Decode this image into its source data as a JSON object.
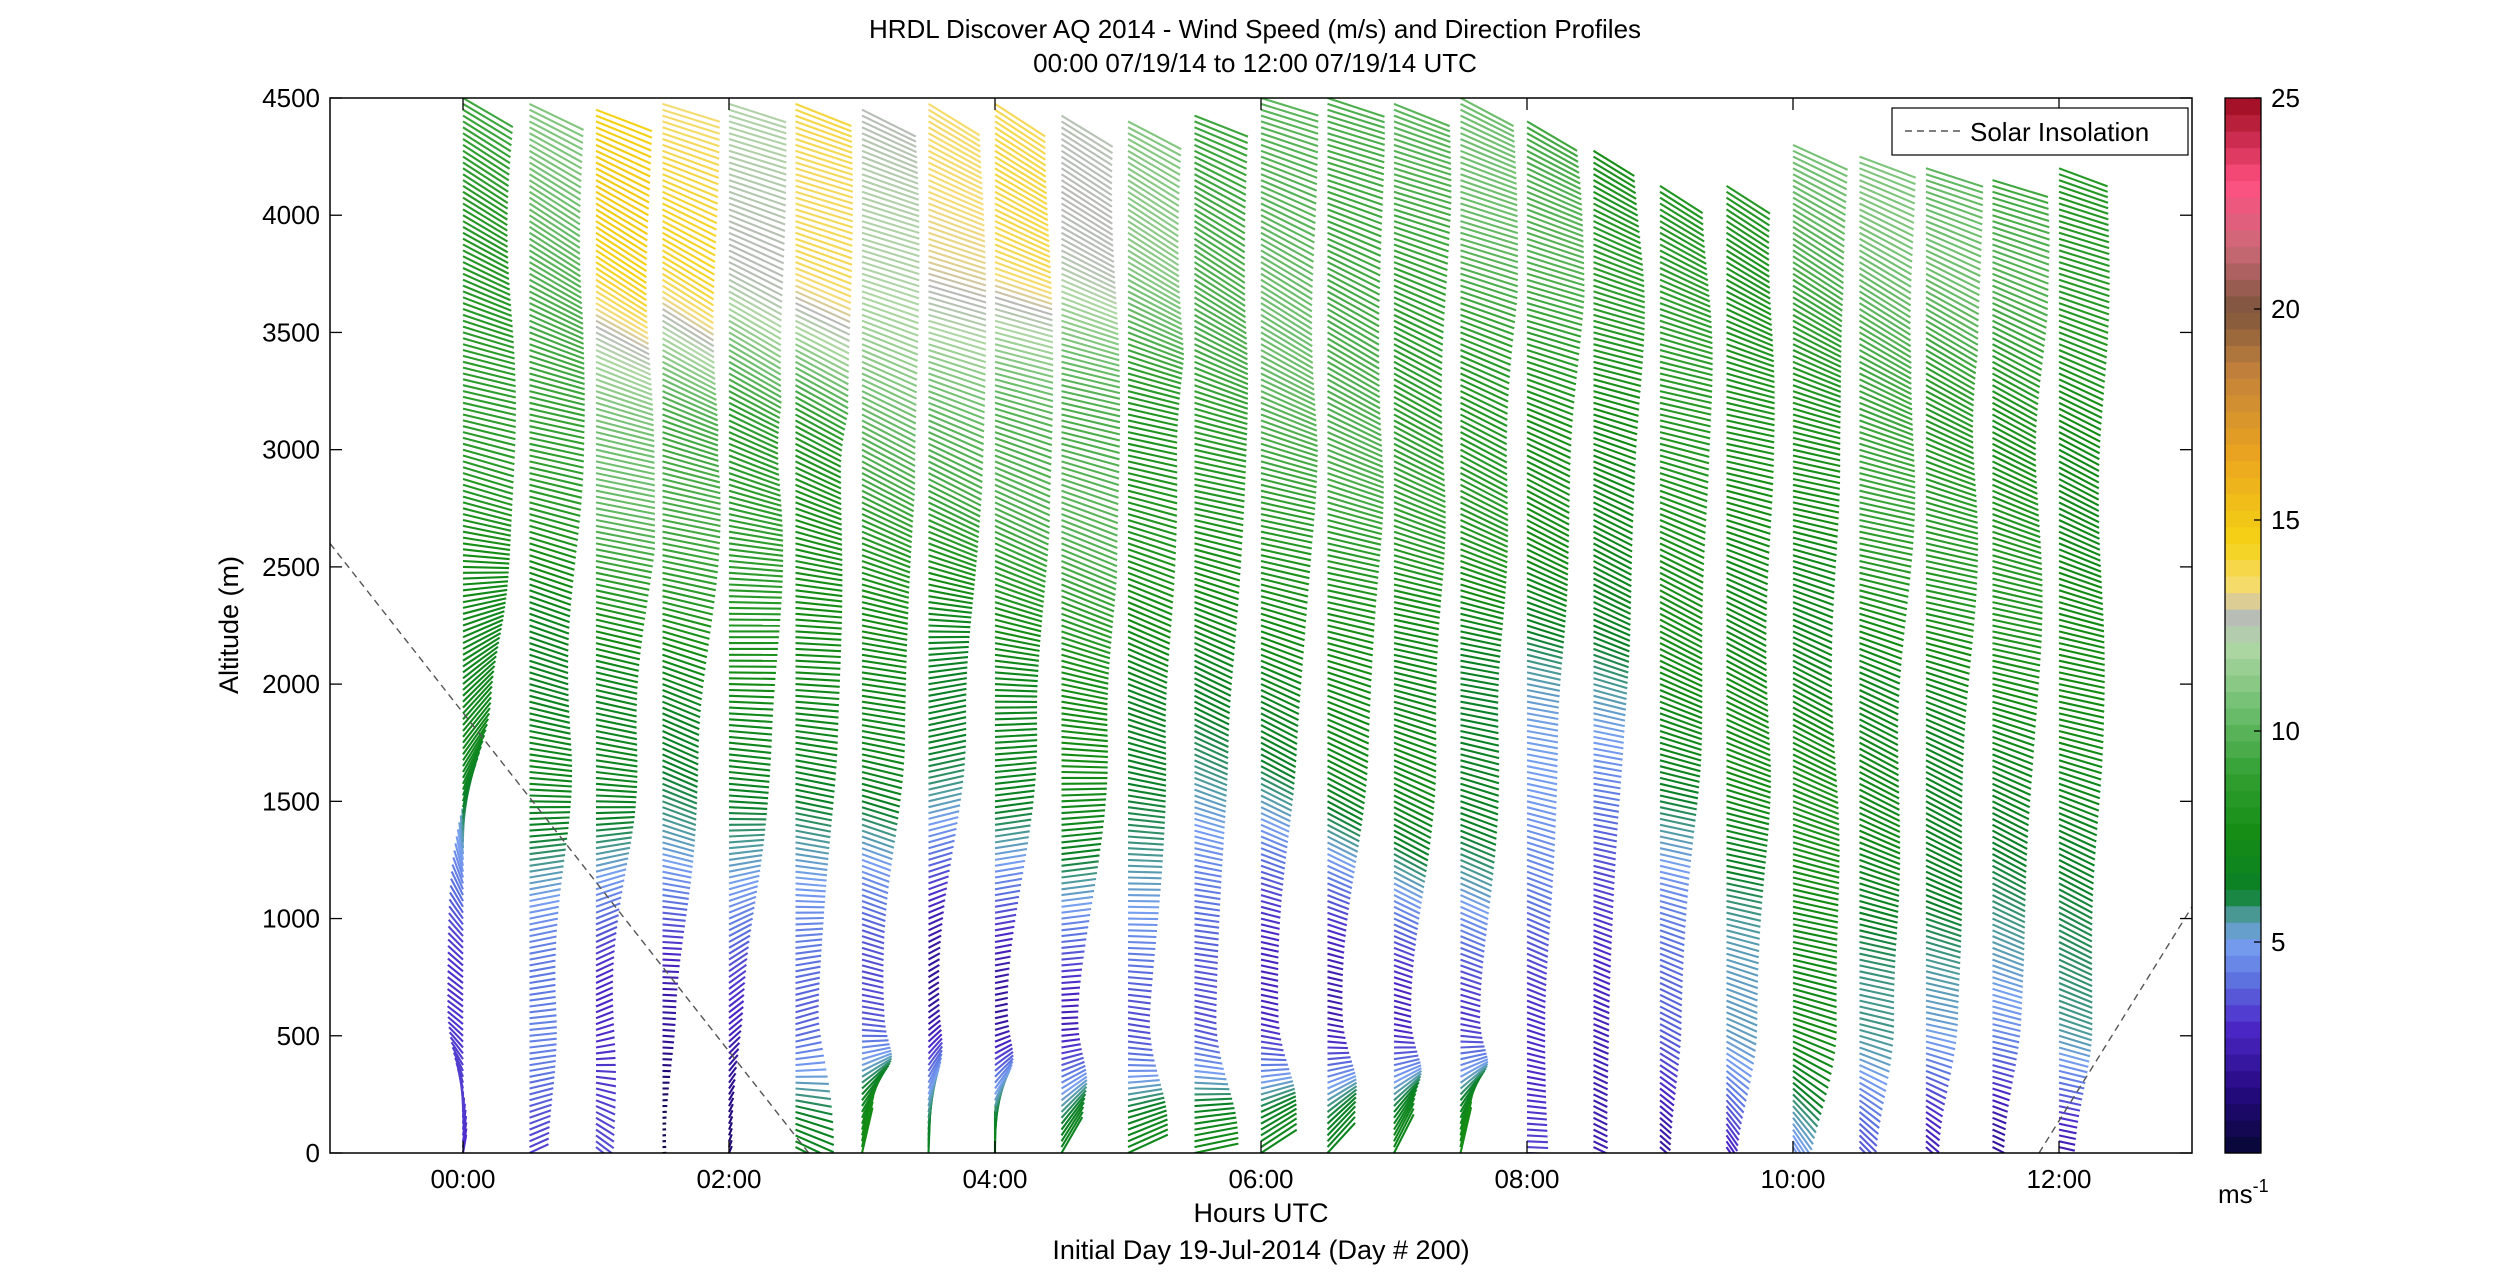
{
  "chart_data": {
    "type": "wind_barb_profile",
    "title_line1": "HRDL Discover AQ 2014 - Wind Speed (m/s) and Direction Profiles",
    "title_line2": "00:00 07/19/14 to 12:00 07/19/14  UTC",
    "xlabel": "Hours UTC",
    "xlabel2": "Initial Day 19-Jul-2014 (Day # 200)",
    "ylabel": "Altitude (m)",
    "xlim": [
      -1.0,
      13.0
    ],
    "ylim": [
      0,
      4500
    ],
    "xticks": [
      0,
      2,
      4,
      6,
      8,
      10,
      12
    ],
    "xtick_labels": [
      "00:00",
      "02:00",
      "04:00",
      "06:00",
      "08:00",
      "10:00",
      "12:00"
    ],
    "yticks": [
      0,
      500,
      1000,
      1500,
      2000,
      2500,
      3000,
      3500,
      4000,
      4500
    ],
    "ytick_labels": [
      "0",
      "500",
      "1000",
      "1500",
      "2000",
      "2500",
      "3000",
      "3500",
      "4000",
      "4500"
    ],
    "colorbar": {
      "range": [
        0,
        25
      ],
      "ticks": [
        5,
        10,
        15,
        20,
        25
      ],
      "tick_labels": [
        "5",
        "10",
        "15",
        "20",
        "25"
      ],
      "unit_label": "ms",
      "unit_exponent": "-1"
    },
    "legend": {
      "entries": [
        "Solar Insolation"
      ],
      "placement": "top-right",
      "line_style": "dashed"
    },
    "solar_insolation": {
      "segments": [
        {
          "x": [
            -1.0,
            2.6
          ],
          "y": [
            2600,
            0
          ]
        },
        {
          "x": [
            11.85,
            13.0
          ],
          "y": [
            0,
            1050
          ]
        }
      ]
    },
    "profiles": [
      {
        "time": 0.0,
        "top": 4500,
        "low": {
          "spd": 3,
          "dir": 190
        },
        "mid": {
          "spd": 2.5,
          "dir": 120
        },
        "up": {
          "spd": 9,
          "dir": 290
        },
        "jet": {
          "spd": 9,
          "dir": 295
        }
      },
      {
        "time": 0.5,
        "top": 4480,
        "low": {
          "spd": 2.5,
          "dir": 240
        },
        "mid": {
          "spd": 4,
          "dir": 260
        },
        "up": {
          "spd": 9,
          "dir": 290
        },
        "jet": {
          "spd": 10,
          "dir": 295
        }
      },
      {
        "time": 1.0,
        "top": 4460,
        "low": {
          "spd": 3,
          "dir": 300
        },
        "mid": {
          "spd": 3.5,
          "dir": 250
        },
        "up": {
          "spd": 10,
          "dir": 290
        },
        "jet": {
          "spd": 14,
          "dir": 295
        }
      },
      {
        "time": 1.5,
        "top": 4490,
        "low": {
          "spd": 1,
          "dir": 260
        },
        "mid": {
          "spd": 3,
          "dir": 280
        },
        "up": {
          "spd": 9,
          "dir": 290
        },
        "jet": {
          "spd": 14,
          "dir": 295
        }
      },
      {
        "time": 2.0,
        "top": 4480,
        "low": {
          "spd": 2,
          "dir": 200
        },
        "mid": {
          "spd": 3,
          "dir": 240
        },
        "up": {
          "spd": 9,
          "dir": 290
        },
        "jet": {
          "spd": 13,
          "dir": 295
        }
      },
      {
        "time": 2.5,
        "top": 4490,
        "low": {
          "spd": 7,
          "dir": 300
        },
        "mid": {
          "spd": 3,
          "dir": 260
        },
        "up": {
          "spd": 9,
          "dir": 290
        },
        "jet": {
          "spd": 14,
          "dir": 295
        }
      },
      {
        "time": 3.0,
        "top": 4460,
        "low": {
          "spd": 7,
          "dir": 200
        },
        "mid": {
          "spd": 3,
          "dir": 280
        },
        "up": {
          "spd": 10,
          "dir": 290
        },
        "jet": {
          "spd": 12,
          "dir": 295
        }
      },
      {
        "time": 3.5,
        "top": 4480,
        "low": {
          "spd": 6,
          "dir": 190
        },
        "mid": {
          "spd": 2.5,
          "dir": 230
        },
        "up": {
          "spd": 9,
          "dir": 290
        },
        "jet": {
          "spd": 13,
          "dir": 295
        }
      },
      {
        "time": 4.0,
        "top": 4480,
        "low": {
          "spd": 7,
          "dir": 185
        },
        "mid": {
          "spd": 3,
          "dir": 250
        },
        "up": {
          "spd": 9,
          "dir": 290
        },
        "jet": {
          "spd": 14,
          "dir": 295
        }
      },
      {
        "time": 4.5,
        "top": 4430,
        "low": {
          "spd": 7,
          "dir": 210
        },
        "mid": {
          "spd": 3,
          "dir": 260
        },
        "up": {
          "spd": 10,
          "dir": 290
        },
        "jet": {
          "spd": 13,
          "dir": 295
        }
      },
      {
        "time": 5.0,
        "top": 4400,
        "low": {
          "spd": 7,
          "dir": 240
        },
        "mid": {
          "spd": 3,
          "dir": 275
        },
        "up": {
          "spd": 9,
          "dir": 290
        },
        "jet": {
          "spd": 11,
          "dir": 295
        }
      },
      {
        "time": 5.5,
        "top": 4430,
        "low": {
          "spd": 7,
          "dir": 250
        },
        "mid": {
          "spd": 3,
          "dir": 285
        },
        "up": {
          "spd": 9,
          "dir": 290
        },
        "jet": {
          "spd": 9,
          "dir": 295
        }
      },
      {
        "time": 6.0,
        "top": 4500,
        "low": {
          "spd": 7,
          "dir": 230
        },
        "mid": {
          "spd": 3,
          "dir": 290
        },
        "up": {
          "spd": 9,
          "dir": 290
        },
        "jet": {
          "spd": 10,
          "dir": 295
        }
      },
      {
        "time": 6.5,
        "top": 4500,
        "low": {
          "spd": 7,
          "dir": 220
        },
        "mid": {
          "spd": 3,
          "dir": 290
        },
        "up": {
          "spd": 9,
          "dir": 290
        },
        "jet": {
          "spd": 10,
          "dir": 295
        }
      },
      {
        "time": 7.0,
        "top": 4490,
        "low": {
          "spd": 7,
          "dir": 210
        },
        "mid": {
          "spd": 3,
          "dir": 290
        },
        "up": {
          "spd": 9,
          "dir": 290
        },
        "jet": {
          "spd": 10,
          "dir": 295
        }
      },
      {
        "time": 7.5,
        "top": 4500,
        "low": {
          "spd": 7,
          "dir": 200
        },
        "mid": {
          "spd": 3,
          "dir": 285
        },
        "up": {
          "spd": 9,
          "dir": 290
        },
        "jet": {
          "spd": 10,
          "dir": 295
        }
      },
      {
        "time": 8.0,
        "top": 4420,
        "low": {
          "spd": 3,
          "dir": 280
        },
        "mid": {
          "spd": 3,
          "dir": 285
        },
        "up": {
          "spd": 8,
          "dir": 290
        },
        "jet": {
          "spd": 9,
          "dir": 295
        }
      },
      {
        "time": 8.5,
        "top": 4280,
        "low": {
          "spd": 3,
          "dir": 300
        },
        "mid": {
          "spd": 3,
          "dir": 285
        },
        "up": {
          "spd": 7,
          "dir": 290
        },
        "jet": {
          "spd": 8,
          "dir": 295
        }
      },
      {
        "time": 9.0,
        "top": 4140,
        "low": {
          "spd": 3,
          "dir": 310
        },
        "mid": {
          "spd": 4,
          "dir": 290
        },
        "up": {
          "spd": 8,
          "dir": 290
        },
        "jet": {
          "spd": 9,
          "dir": 295
        }
      },
      {
        "time": 9.5,
        "top": 4130,
        "low": {
          "spd": 3,
          "dir": 320
        },
        "mid": {
          "spd": 5,
          "dir": 290
        },
        "up": {
          "spd": 8,
          "dir": 290
        },
        "jet": {
          "spd": 9,
          "dir": 295
        }
      },
      {
        "time": 10.0,
        "top": 4300,
        "low": {
          "spd": 4,
          "dir": 320
        },
        "mid": {
          "spd": 7,
          "dir": 290
        },
        "up": {
          "spd": 8,
          "dir": 290
        },
        "jet": {
          "spd": 10,
          "dir": 295
        }
      },
      {
        "time": 10.5,
        "top": 4250,
        "low": {
          "spd": 3,
          "dir": 310
        },
        "mid": {
          "spd": 6,
          "dir": 290
        },
        "up": {
          "spd": 9,
          "dir": 290
        },
        "jet": {
          "spd": 10,
          "dir": 295
        }
      },
      {
        "time": 11.0,
        "top": 4200,
        "low": {
          "spd": 3,
          "dir": 310
        },
        "mid": {
          "spd": 6,
          "dir": 290
        },
        "up": {
          "spd": 8,
          "dir": 290
        },
        "jet": {
          "spd": 10,
          "dir": 295
        }
      },
      {
        "time": 11.5,
        "top": 4150,
        "low": {
          "spd": 3,
          "dir": 300
        },
        "mid": {
          "spd": 5,
          "dir": 290
        },
        "up": {
          "spd": 8,
          "dir": 290
        },
        "jet": {
          "spd": 10,
          "dir": 295
        }
      },
      {
        "time": 12.0,
        "top": 4200,
        "low": {
          "spd": 3,
          "dir": 290
        },
        "mid": {
          "spd": 5,
          "dir": 290
        },
        "up": {
          "spd": 8,
          "dir": 290
        },
        "jet": {
          "spd": 9,
          "dir": 295
        }
      }
    ]
  }
}
